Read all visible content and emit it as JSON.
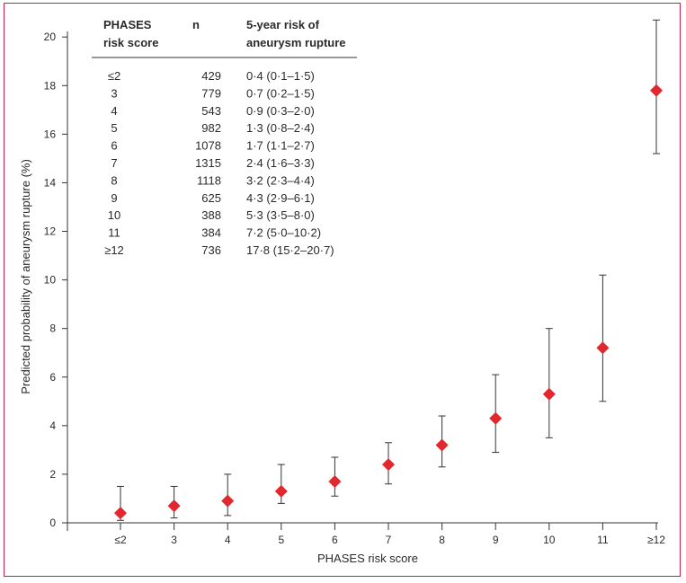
{
  "chart_data": {
    "type": "scatter",
    "xlabel": "PHASES risk score",
    "ylabel": "Predicted probability of aneurysm rupture (%)",
    "ylim": [
      0,
      20
    ],
    "yticks": [
      "0",
      "2",
      "4",
      "6",
      "8",
      "10",
      "12",
      "14",
      "16",
      "18",
      "20"
    ],
    "categories": [
      "≤2",
      "3",
      "4",
      "5",
      "6",
      "7",
      "8",
      "9",
      "10",
      "11",
      "≥12"
    ],
    "series": [
      {
        "values": [
          0.4,
          0.7,
          0.9,
          1.3,
          1.7,
          2.4,
          3.2,
          4.3,
          5.3,
          7.2,
          17.8
        ],
        "lower": [
          0.1,
          0.2,
          0.3,
          0.8,
          1.1,
          1.6,
          2.3,
          2.9,
          3.5,
          5.0,
          15.2
        ],
        "upper": [
          1.5,
          1.5,
          2.0,
          2.4,
          2.7,
          3.3,
          4.4,
          6.1,
          8.0,
          10.2,
          20.7
        ],
        "color": "#e0282e"
      }
    ],
    "grid": false,
    "legend": "none"
  },
  "table": {
    "headers": {
      "col1_line1": "PHASES",
      "col1_line2": "risk score",
      "col2": "n",
      "col3_line1": "5-year risk of",
      "col3_line2": "aneurysm rupture"
    },
    "rows": [
      {
        "score": "≤2",
        "n": "429",
        "risk": "0·4 (0·1–1·5)"
      },
      {
        "score": "3",
        "n": "779",
        "risk": "0·7 (0·2–1·5)"
      },
      {
        "score": "4",
        "n": "543",
        "risk": "0·9 (0·3–2·0)"
      },
      {
        "score": "5",
        "n": "982",
        "risk": "1·3 (0·8–2·4)"
      },
      {
        "score": "6",
        "n": "1078",
        "risk": "1·7 (1·1–2·7)"
      },
      {
        "score": "7",
        "n": "1315",
        "risk": "2·4 (1·6–3·3)"
      },
      {
        "score": "8",
        "n": "1118",
        "risk": "3·2 (2·3–4·4)"
      },
      {
        "score": "9",
        "n": "625",
        "risk": "4·3 (2·9–6·1)"
      },
      {
        "score": "10",
        "n": "388",
        "risk": "5·3 (3·5–8·0)"
      },
      {
        "score": "11",
        "n": "384",
        "risk": "7·2 (5·0–10·2)"
      },
      {
        "score": "≥12",
        "n": "736",
        "risk": "17·8 (15·2–20·7)"
      }
    ]
  },
  "colors": {
    "frame": "#c8204a",
    "marker": "#e0282e",
    "text": "#2a2a2a"
  }
}
